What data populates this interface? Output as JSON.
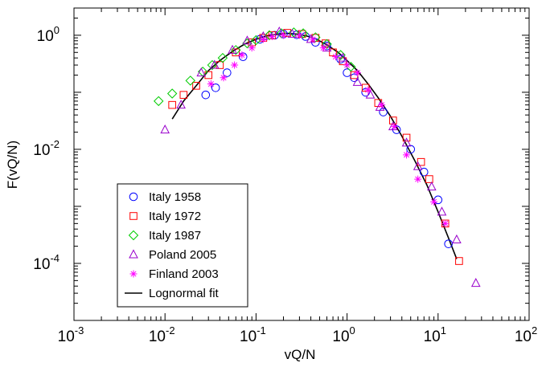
{
  "chart_data": {
    "type": "scatter",
    "x_scale": "log",
    "y_scale": "log",
    "xlim": [
      0.001,
      100
    ],
    "ylim": [
      1e-05,
      3
    ],
    "xlabel": "vQ/N",
    "ylabel": "F(vQ/N)",
    "x_ticks": [
      {
        "value": 0.001,
        "base": "10",
        "exp": "-3"
      },
      {
        "value": 0.01,
        "base": "10",
        "exp": "-2"
      },
      {
        "value": 0.1,
        "base": "10",
        "exp": "-1"
      },
      {
        "value": 1,
        "base": "10",
        "exp": "0"
      },
      {
        "value": 10,
        "base": "10",
        "exp": "1"
      },
      {
        "value": 100,
        "base": "10",
        "exp": "2"
      }
    ],
    "y_ticks": [
      {
        "value": 1,
        "base": "10",
        "exp": "0"
      },
      {
        "value": 0.01,
        "base": "10",
        "exp": "-2"
      },
      {
        "value": 0.0001,
        "base": "10",
        "exp": "-4"
      }
    ],
    "legend_position": "bottom-left",
    "grid": false,
    "series": [
      {
        "name": "Italy 1958",
        "marker": "circle",
        "color": "#0000ff",
        "points": [
          [
            0.028,
            0.09
          ],
          [
            0.036,
            0.12
          ],
          [
            0.048,
            0.22
          ],
          [
            0.072,
            0.42
          ],
          [
            0.11,
            0.85
          ],
          [
            0.16,
            1.0
          ],
          [
            0.2,
            1.05
          ],
          [
            0.28,
            1.02
          ],
          [
            0.35,
            0.95
          ],
          [
            0.45,
            0.75
          ],
          [
            0.6,
            0.65
          ],
          [
            0.85,
            0.38
          ],
          [
            1.0,
            0.22
          ],
          [
            1.2,
            0.18
          ],
          [
            1.6,
            0.1
          ],
          [
            2.5,
            0.045
          ],
          [
            3.5,
            0.022
          ],
          [
            5.0,
            0.01
          ],
          [
            7.0,
            0.004
          ],
          [
            10.0,
            0.0013
          ],
          [
            13.0,
            0.00022
          ]
        ]
      },
      {
        "name": "Italy 1972",
        "marker": "square",
        "color": "#ff0000",
        "points": [
          [
            0.012,
            0.06
          ],
          [
            0.016,
            0.09
          ],
          [
            0.022,
            0.13
          ],
          [
            0.03,
            0.2
          ],
          [
            0.04,
            0.3
          ],
          [
            0.06,
            0.5
          ],
          [
            0.09,
            0.75
          ],
          [
            0.12,
            0.9
          ],
          [
            0.15,
            1.0
          ],
          [
            0.22,
            1.1
          ],
          [
            0.32,
            1.05
          ],
          [
            0.45,
            0.9
          ],
          [
            0.58,
            0.72
          ],
          [
            0.7,
            0.5
          ],
          [
            0.9,
            0.35
          ],
          [
            1.2,
            0.2
          ],
          [
            1.6,
            0.12
          ],
          [
            2.2,
            0.065
          ],
          [
            3.2,
            0.032
          ],
          [
            4.5,
            0.016
          ],
          [
            6.5,
            0.006
          ],
          [
            8.0,
            0.003
          ],
          [
            12.0,
            0.0005
          ],
          [
            17.0,
            0.00011
          ]
        ]
      },
      {
        "name": "Italy 1987",
        "marker": "diamond",
        "color": "#00cc00",
        "points": [
          [
            0.0085,
            0.07
          ],
          [
            0.012,
            0.095
          ],
          [
            0.019,
            0.16
          ],
          [
            0.026,
            0.23
          ],
          [
            0.033,
            0.3
          ],
          [
            0.043,
            0.4
          ],
          [
            0.06,
            0.55
          ],
          [
            0.08,
            0.72
          ],
          [
            0.1,
            0.82
          ],
          [
            0.14,
            1.0
          ],
          [
            0.19,
            1.08
          ],
          [
            0.26,
            1.12
          ],
          [
            0.33,
            1.08
          ],
          [
            0.45,
            0.92
          ],
          [
            0.6,
            0.7
          ],
          [
            0.85,
            0.45
          ],
          [
            1.1,
            0.28
          ]
        ]
      },
      {
        "name": "Poland 2005",
        "marker": "triangle",
        "color": "#9900cc",
        "points": [
          [
            0.01,
            0.022
          ],
          [
            0.015,
            0.06
          ],
          [
            0.025,
            0.22
          ],
          [
            0.035,
            0.3
          ],
          [
            0.055,
            0.55
          ],
          [
            0.08,
            0.8
          ],
          [
            0.12,
            0.95
          ],
          [
            0.18,
            1.15
          ],
          [
            0.25,
            1.05
          ],
          [
            0.4,
            0.85
          ],
          [
            0.6,
            0.6
          ],
          [
            0.9,
            0.4
          ],
          [
            1.3,
            0.15
          ],
          [
            1.8,
            0.09
          ],
          [
            2.3,
            0.055
          ],
          [
            3.2,
            0.025
          ],
          [
            4.5,
            0.013
          ],
          [
            6.0,
            0.005
          ],
          [
            8.5,
            0.0022
          ],
          [
            11.0,
            0.0008
          ],
          [
            16.0,
            0.00026
          ],
          [
            26.0,
            4.5e-05
          ]
        ]
      },
      {
        "name": "Finland 2003",
        "marker": "star",
        "color": "#ff00ff",
        "points": [
          [
            0.032,
            0.14
          ],
          [
            0.044,
            0.18
          ],
          [
            0.058,
            0.3
          ],
          [
            0.07,
            0.45
          ],
          [
            0.09,
            0.6
          ],
          [
            0.12,
            0.85
          ],
          [
            0.15,
            0.95
          ],
          [
            0.2,
            1.0
          ],
          [
            0.3,
            1.0
          ],
          [
            0.42,
            0.85
          ],
          [
            0.55,
            0.6
          ],
          [
            0.75,
            0.42
          ],
          [
            1.0,
            0.3
          ],
          [
            1.3,
            0.22
          ],
          [
            1.7,
            0.11
          ],
          [
            2.4,
            0.06
          ],
          [
            3.3,
            0.025
          ],
          [
            4.5,
            0.008
          ],
          [
            6.0,
            0.003
          ],
          [
            9.0,
            0.0012
          ],
          [
            12.0,
            0.0005
          ]
        ]
      }
    ],
    "fit": {
      "name": "Lognormal fit",
      "color": "#000000",
      "points": [
        [
          0.012,
          0.034
        ],
        [
          0.016,
          0.07
        ],
        [
          0.022,
          0.13
        ],
        [
          0.03,
          0.24
        ],
        [
          0.04,
          0.36
        ],
        [
          0.055,
          0.52
        ],
        [
          0.075,
          0.7
        ],
        [
          0.1,
          0.85
        ],
        [
          0.13,
          0.97
        ],
        [
          0.17,
          1.05
        ],
        [
          0.22,
          1.08
        ],
        [
          0.28,
          1.05
        ],
        [
          0.36,
          0.97
        ],
        [
          0.47,
          0.84
        ],
        [
          0.6,
          0.68
        ],
        [
          0.8,
          0.5
        ],
        [
          1.0,
          0.36
        ],
        [
          1.3,
          0.24
        ],
        [
          1.7,
          0.14
        ],
        [
          2.2,
          0.08
        ],
        [
          3.0,
          0.038
        ],
        [
          4.0,
          0.017
        ],
        [
          5.5,
          0.0065
        ],
        [
          7.5,
          0.0024
        ],
        [
          10.0,
          0.0008
        ],
        [
          13.0,
          0.00028
        ],
        [
          16.0,
          0.00012
        ]
      ]
    }
  }
}
